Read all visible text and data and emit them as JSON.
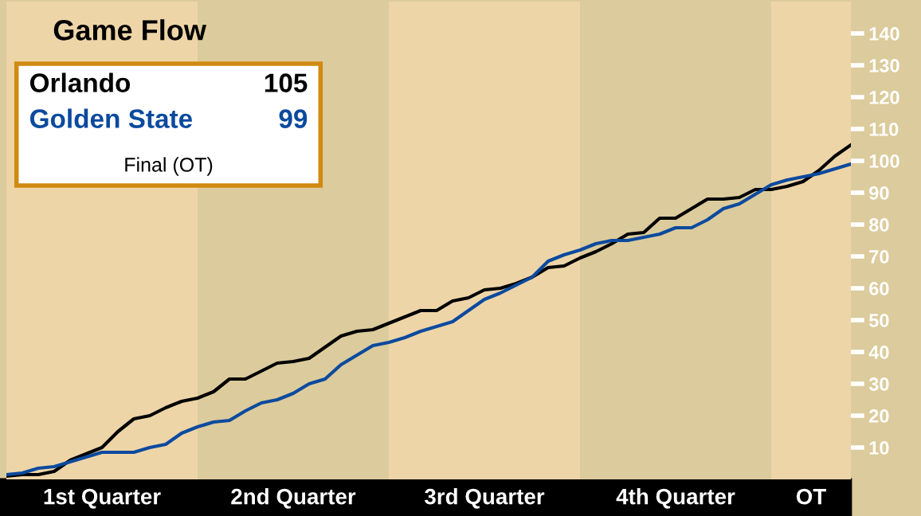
{
  "chart_data": {
    "type": "line",
    "title": "Game Flow",
    "categories": [
      null,
      null,
      null,
      null,
      null,
      null,
      null,
      null,
      null,
      null,
      null,
      null,
      null,
      null,
      null,
      null,
      null,
      null,
      null,
      null,
      null,
      null,
      null,
      null,
      null,
      null,
      null,
      null,
      null,
      null,
      null,
      null,
      null,
      null,
      null,
      null,
      null,
      null,
      null,
      null,
      null,
      null,
      null,
      null,
      null,
      null,
      null,
      null,
      null,
      null,
      null,
      null,
      null,
      null
    ],
    "ylim": [
      0,
      150
    ],
    "yticks": [
      10,
      20,
      30,
      40,
      50,
      60,
      70,
      80,
      90,
      100,
      110,
      120,
      130,
      140
    ],
    "series": [
      {
        "name": "Orlando",
        "color": "#000000",
        "values": [
          1,
          1.5,
          1.5,
          2.5,
          6,
          8,
          10,
          15,
          19,
          20,
          22.5,
          24.5,
          25.5,
          27.5,
          31.5,
          31.5,
          34,
          36.5,
          37,
          38,
          41.5,
          45,
          46.5,
          47,
          49,
          51,
          53,
          53,
          56,
          57,
          59.5,
          60,
          61.5,
          63.5,
          66.5,
          67,
          69.5,
          71.5,
          74,
          77,
          77.5,
          82,
          82,
          85,
          88,
          88,
          88.5,
          91,
          91,
          92,
          93.5,
          97,
          101.5,
          105
        ]
      },
      {
        "name": "Golden State",
        "color": "#0b4a9e",
        "values": [
          1.5,
          2,
          3.5,
          4,
          5.5,
          7,
          8.5,
          8.5,
          8.5,
          10,
          11,
          14.5,
          16.5,
          18,
          18.5,
          21.5,
          24,
          25,
          27,
          30,
          31.5,
          36,
          39,
          42,
          43,
          44.5,
          46.5,
          48,
          49.5,
          53,
          56.5,
          58.5,
          61,
          63.5,
          68.5,
          70.5,
          72,
          74,
          75,
          75,
          76,
          77,
          79,
          79,
          81.5,
          85,
          86.5,
          89.5,
          92.5,
          94,
          95,
          96,
          97.5,
          99
        ]
      }
    ],
    "annotations": [
      "105",
      "99",
      "Final (OT)",
      "1st Quarter",
      "2nd Quarter",
      "3rd Quarter",
      "4th Quarter",
      "OT"
    ],
    "grid": false,
    "marker": "none",
    "line_style": "solid"
  }
}
